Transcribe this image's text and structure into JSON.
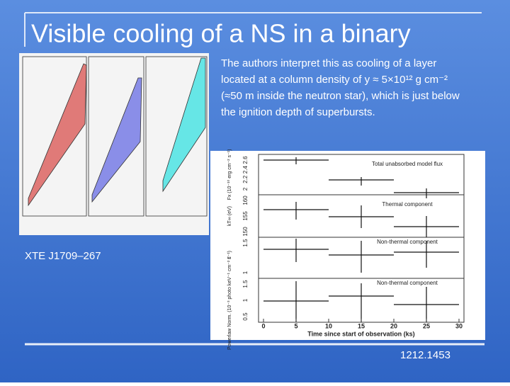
{
  "slide": {
    "title": "Visible cooling of a NS in a binary",
    "body_lines": [
      "The authors interpret this as cooling of a layer",
      "located at a column density of y ≈ 5×10¹² g cm⁻²",
      "(≈50 m inside the neutron star), which is just below",
      "the ignition depth of superbursts."
    ],
    "source_label": "XTE J1709–267",
    "reference": "1212.1453",
    "figure": {
      "panel_labels": [
        "Total unabsorbed model flux",
        "Thermal component",
        "Non-thermal component",
        "Non-thermal component"
      ],
      "y_axis_labels": [
        "Fx (10⁻¹⁰ erg cm⁻² s⁻¹)",
        "kT∞ (eV)",
        "Γ",
        "Powerlaw Norm. (10⁻³ photo keV⁻¹ cm⁻² s⁻¹)"
      ],
      "y_tick_labels": [
        [
          "2",
          "2.2",
          "2.4",
          "2.6"
        ],
        [
          "150",
          "155",
          "160"
        ],
        [
          "1",
          "1.5"
        ],
        [
          "0.5",
          "1",
          "1.5"
        ]
      ],
      "x_axis_label": "Time since start of observation (ks)",
      "xticks": [
        0,
        5,
        10,
        15,
        20,
        25,
        30
      ]
    }
  }
}
